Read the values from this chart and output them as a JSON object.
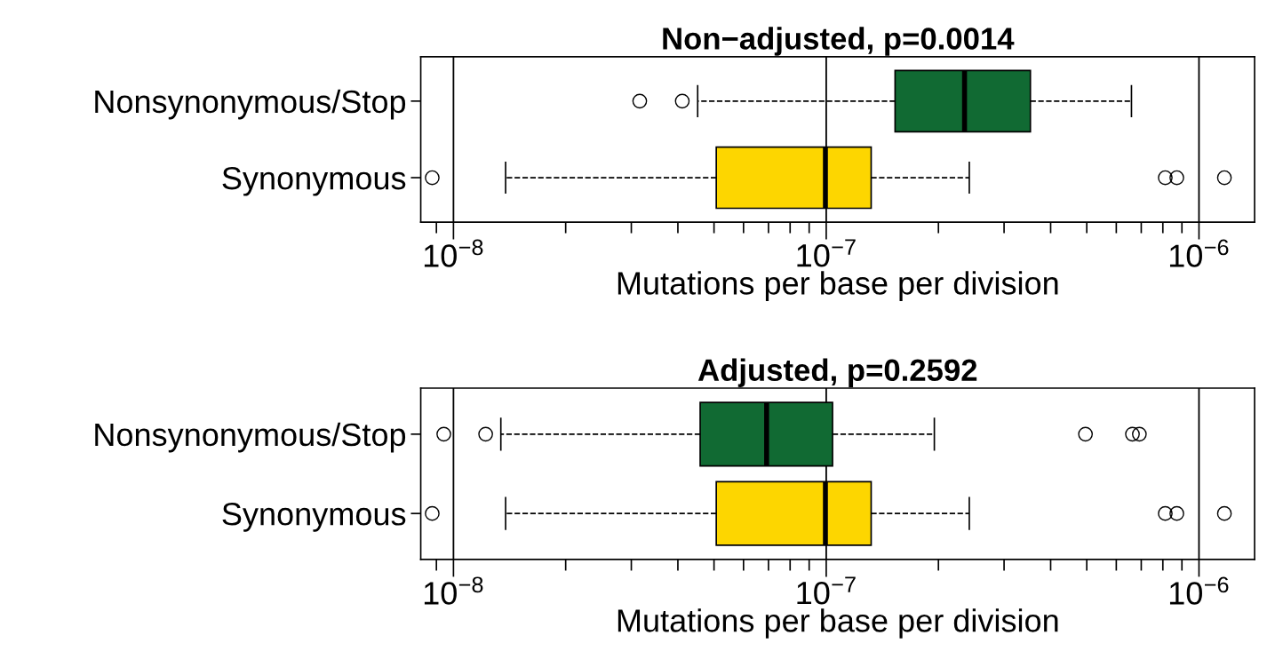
{
  "chart_data": [
    {
      "type": "box",
      "orientation": "horizontal",
      "title": "Non−adjusted, p=0.0014",
      "xlabel": "Mutations per base per division",
      "categories": [
        "Nonsynonymous/Stop",
        "Synonymous"
      ],
      "colors": [
        "#116a33",
        "#fdd600"
      ],
      "boxes": [
        {
          "low": 4.52e-08,
          "q1": 1.53e-07,
          "median": 2.35e-07,
          "q3": 3.53e-07,
          "high": 6.59e-07,
          "outliers": [
            3.16e-08,
            4.11e-08
          ]
        },
        {
          "low": 1.38e-08,
          "q1": 5.07e-08,
          "median": 9.95e-08,
          "q3": 1.32e-07,
          "high": 2.42e-07,
          "outliers": [
            8.77e-09,
            8.12e-07,
            8.72e-07,
            1.17e-06
          ]
        }
      ],
      "log": "x",
      "xlim": [
        8.17e-09,
        1.41e-06
      ],
      "xticks": [
        {
          "value": 9e-09,
          "label": null
        },
        {
          "value": 1e-08,
          "label": "10$^{−8}$"
        },
        {
          "value": 2e-08,
          "label": null
        },
        {
          "value": 3e-08,
          "label": null
        },
        {
          "value": 4e-08,
          "label": null
        },
        {
          "value": 5e-08,
          "label": null
        },
        {
          "value": 6e-08,
          "label": null
        },
        {
          "value": 7e-08,
          "label": null
        },
        {
          "value": 8e-08,
          "label": null
        },
        {
          "value": 9e-08,
          "label": null
        },
        {
          "value": 1e-07,
          "label": "10$^{−7}$"
        },
        {
          "value": 2e-07,
          "label": null
        },
        {
          "value": 3e-07,
          "label": null
        },
        {
          "value": 4e-07,
          "label": null
        },
        {
          "value": 5e-07,
          "label": null
        },
        {
          "value": 6e-07,
          "label": null
        },
        {
          "value": 7e-07,
          "label": null
        },
        {
          "value": 8e-07,
          "label": null
        },
        {
          "value": 9e-07,
          "label": null
        },
        {
          "value": 1e-06,
          "label": "10$^{−6}$"
        }
      ],
      "ref_lines": [
        {
          "axis": "x",
          "value": 1e-08,
          "color": "#000000"
        },
        {
          "axis": "x",
          "value": 1e-07,
          "color": "#000000"
        },
        {
          "axis": "x",
          "value": 1e-06,
          "color": "#000000"
        }
      ],
      "marker": "circle",
      "line_style": "dashed",
      "grid": false,
      "legend": false
    },
    {
      "type": "box",
      "orientation": "horizontal",
      "title": "Adjusted, p=0.2592",
      "xlabel": "Mutations per base per division",
      "categories": [
        "Nonsynonymous/Stop",
        "Synonymous"
      ],
      "colors": [
        "#116a33",
        "#fdd600"
      ],
      "boxes": [
        {
          "low": 1.34e-08,
          "q1": 4.59e-08,
          "median": 6.92e-08,
          "q3": 1.04e-07,
          "high": 1.95e-07,
          "outliers": [
            9.42e-09,
            1.22e-08,
            4.96e-07,
            6.63e-07,
            6.92e-07
          ]
        },
        {
          "low": 1.38e-08,
          "q1": 5.07e-08,
          "median": 9.95e-08,
          "q3": 1.32e-07,
          "high": 2.42e-07,
          "outliers": [
            8.77e-09,
            8.12e-07,
            8.72e-07,
            1.17e-06
          ]
        }
      ],
      "log": "x",
      "xlim": [
        8.17e-09,
        1.41e-06
      ],
      "xticks": [
        {
          "value": 9e-09,
          "label": null
        },
        {
          "value": 1e-08,
          "label": "10$^{−8}$"
        },
        {
          "value": 2e-08,
          "label": null
        },
        {
          "value": 3e-08,
          "label": null
        },
        {
          "value": 4e-08,
          "label": null
        },
        {
          "value": 5e-08,
          "label": null
        },
        {
          "value": 6e-08,
          "label": null
        },
        {
          "value": 7e-08,
          "label": null
        },
        {
          "value": 8e-08,
          "label": null
        },
        {
          "value": 9e-08,
          "label": null
        },
        {
          "value": 1e-07,
          "label": "10$^{−7}$"
        },
        {
          "value": 2e-07,
          "label": null
        },
        {
          "value": 3e-07,
          "label": null
        },
        {
          "value": 4e-07,
          "label": null
        },
        {
          "value": 5e-07,
          "label": null
        },
        {
          "value": 6e-07,
          "label": null
        },
        {
          "value": 7e-07,
          "label": null
        },
        {
          "value": 8e-07,
          "label": null
        },
        {
          "value": 9e-07,
          "label": null
        },
        {
          "value": 1e-06,
          "label": "10$^{−6}$"
        }
      ],
      "ref_lines": [
        {
          "axis": "x",
          "value": 1e-08,
          "color": "#000000"
        },
        {
          "axis": "x",
          "value": 1e-07,
          "color": "#000000"
        },
        {
          "axis": "x",
          "value": 1e-06,
          "color": "#000000"
        }
      ],
      "marker": "circle",
      "line_style": "dashed",
      "grid": false,
      "legend": false
    }
  ]
}
